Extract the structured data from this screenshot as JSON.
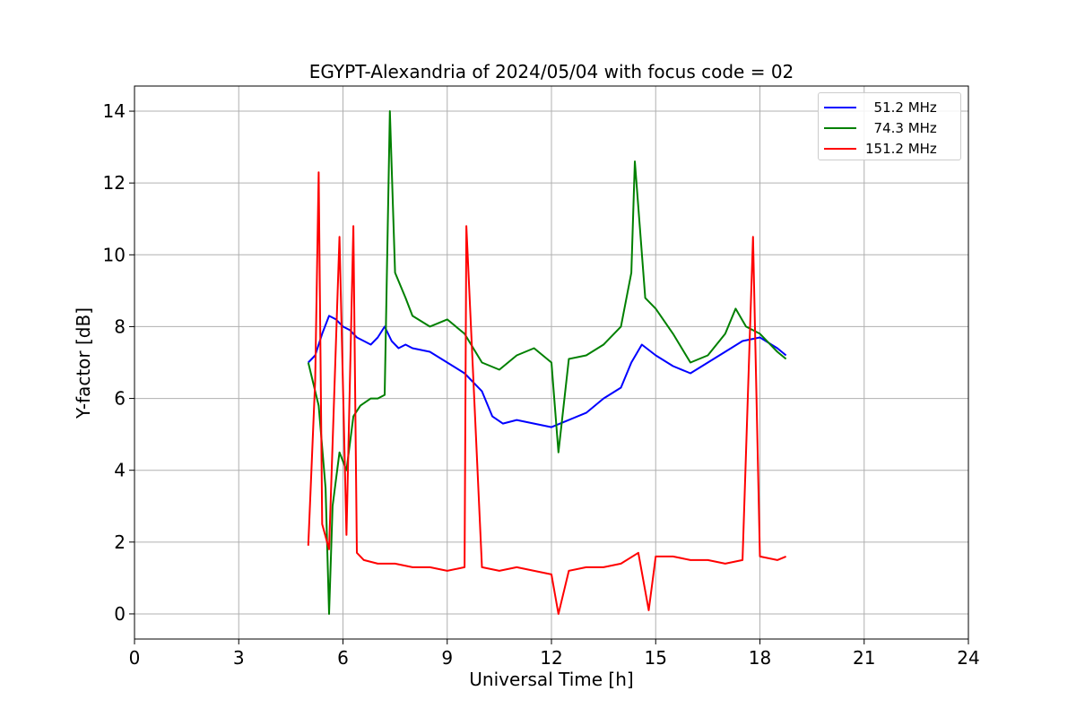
{
  "chart_data": {
    "type": "line",
    "title": "EGYPT-Alexandria of 2024/05/04 with focus code = 02",
    "xlabel": "Universal Time [h]",
    "ylabel": "Y-factor [dB]",
    "xlim": [
      0,
      24
    ],
    "ylim": [
      -0.7,
      14.7
    ],
    "xticks": [
      0,
      3,
      6,
      9,
      12,
      15,
      18,
      21,
      24
    ],
    "yticks": [
      0,
      2,
      4,
      6,
      8,
      10,
      12,
      14
    ],
    "grid": true,
    "legend_position": "top-right",
    "series": [
      {
        "name": "  51.2 MHz",
        "color": "#0000ff",
        "x": [
          5.0,
          5.2,
          5.4,
          5.6,
          5.8,
          6.0,
          6.2,
          6.4,
          6.6,
          6.8,
          7.0,
          7.2,
          7.4,
          7.6,
          7.8,
          8.0,
          8.5,
          9.0,
          9.5,
          10.0,
          10.3,
          10.6,
          11.0,
          11.5,
          12.0,
          12.5,
          13.0,
          13.5,
          14.0,
          14.3,
          14.6,
          15.0,
          15.5,
          16.0,
          16.5,
          17.0,
          17.5,
          18.0,
          18.5,
          18.75
        ],
        "y": [
          7.0,
          7.2,
          7.8,
          8.3,
          8.2,
          8.0,
          7.9,
          7.7,
          7.6,
          7.5,
          7.7,
          8.0,
          7.6,
          7.4,
          7.5,
          7.4,
          7.3,
          7.0,
          6.7,
          6.2,
          5.5,
          5.3,
          5.4,
          5.3,
          5.2,
          5.4,
          5.6,
          6.0,
          6.3,
          7.0,
          7.5,
          7.2,
          6.9,
          6.7,
          7.0,
          7.3,
          7.6,
          7.7,
          7.4,
          7.2
        ]
      },
      {
        "name": "  74.3 MHz",
        "color": "#008000",
        "x": [
          5.0,
          5.3,
          5.5,
          5.6,
          5.7,
          5.9,
          6.1,
          6.3,
          6.5,
          6.8,
          7.0,
          7.2,
          7.35,
          7.5,
          7.8,
          8.0,
          8.5,
          9.0,
          9.5,
          10.0,
          10.5,
          11.0,
          11.5,
          12.0,
          12.2,
          12.5,
          13.0,
          13.5,
          14.0,
          14.3,
          14.4,
          14.7,
          15.0,
          15.5,
          16.0,
          16.5,
          17.0,
          17.3,
          17.6,
          18.0,
          18.5,
          18.75
        ],
        "y": [
          7.0,
          5.8,
          3.5,
          0.0,
          3.0,
          4.5,
          4.0,
          5.5,
          5.8,
          6.0,
          6.0,
          6.1,
          14.0,
          9.5,
          8.8,
          8.3,
          8.0,
          8.2,
          7.8,
          7.0,
          6.8,
          7.2,
          7.4,
          7.0,
          4.5,
          7.1,
          7.2,
          7.5,
          8.0,
          9.5,
          12.6,
          8.8,
          8.5,
          7.8,
          7.0,
          7.2,
          7.8,
          8.5,
          8.0,
          7.8,
          7.3,
          7.1
        ]
      },
      {
        "name": "151.2 MHz",
        "color": "#ff0000",
        "x": [
          5.0,
          5.2,
          5.3,
          5.4,
          5.6,
          5.9,
          6.1,
          6.3,
          6.4,
          6.6,
          7.0,
          7.5,
          8.0,
          8.5,
          9.0,
          9.5,
          9.55,
          10.0,
          10.5,
          11.0,
          11.5,
          12.0,
          12.2,
          12.5,
          13.0,
          13.5,
          14.0,
          14.5,
          14.8,
          15.0,
          15.5,
          16.0,
          16.5,
          17.0,
          17.5,
          17.8,
          18.0,
          18.5,
          18.75
        ],
        "y": [
          1.9,
          6.5,
          12.3,
          2.5,
          1.8,
          10.5,
          2.2,
          10.8,
          1.7,
          1.5,
          1.4,
          1.4,
          1.3,
          1.3,
          1.2,
          1.3,
          10.8,
          1.3,
          1.2,
          1.3,
          1.2,
          1.1,
          0.0,
          1.2,
          1.3,
          1.3,
          1.4,
          1.7,
          0.1,
          1.6,
          1.6,
          1.5,
          1.5,
          1.4,
          1.5,
          10.5,
          1.6,
          1.5,
          1.6
        ]
      }
    ]
  }
}
